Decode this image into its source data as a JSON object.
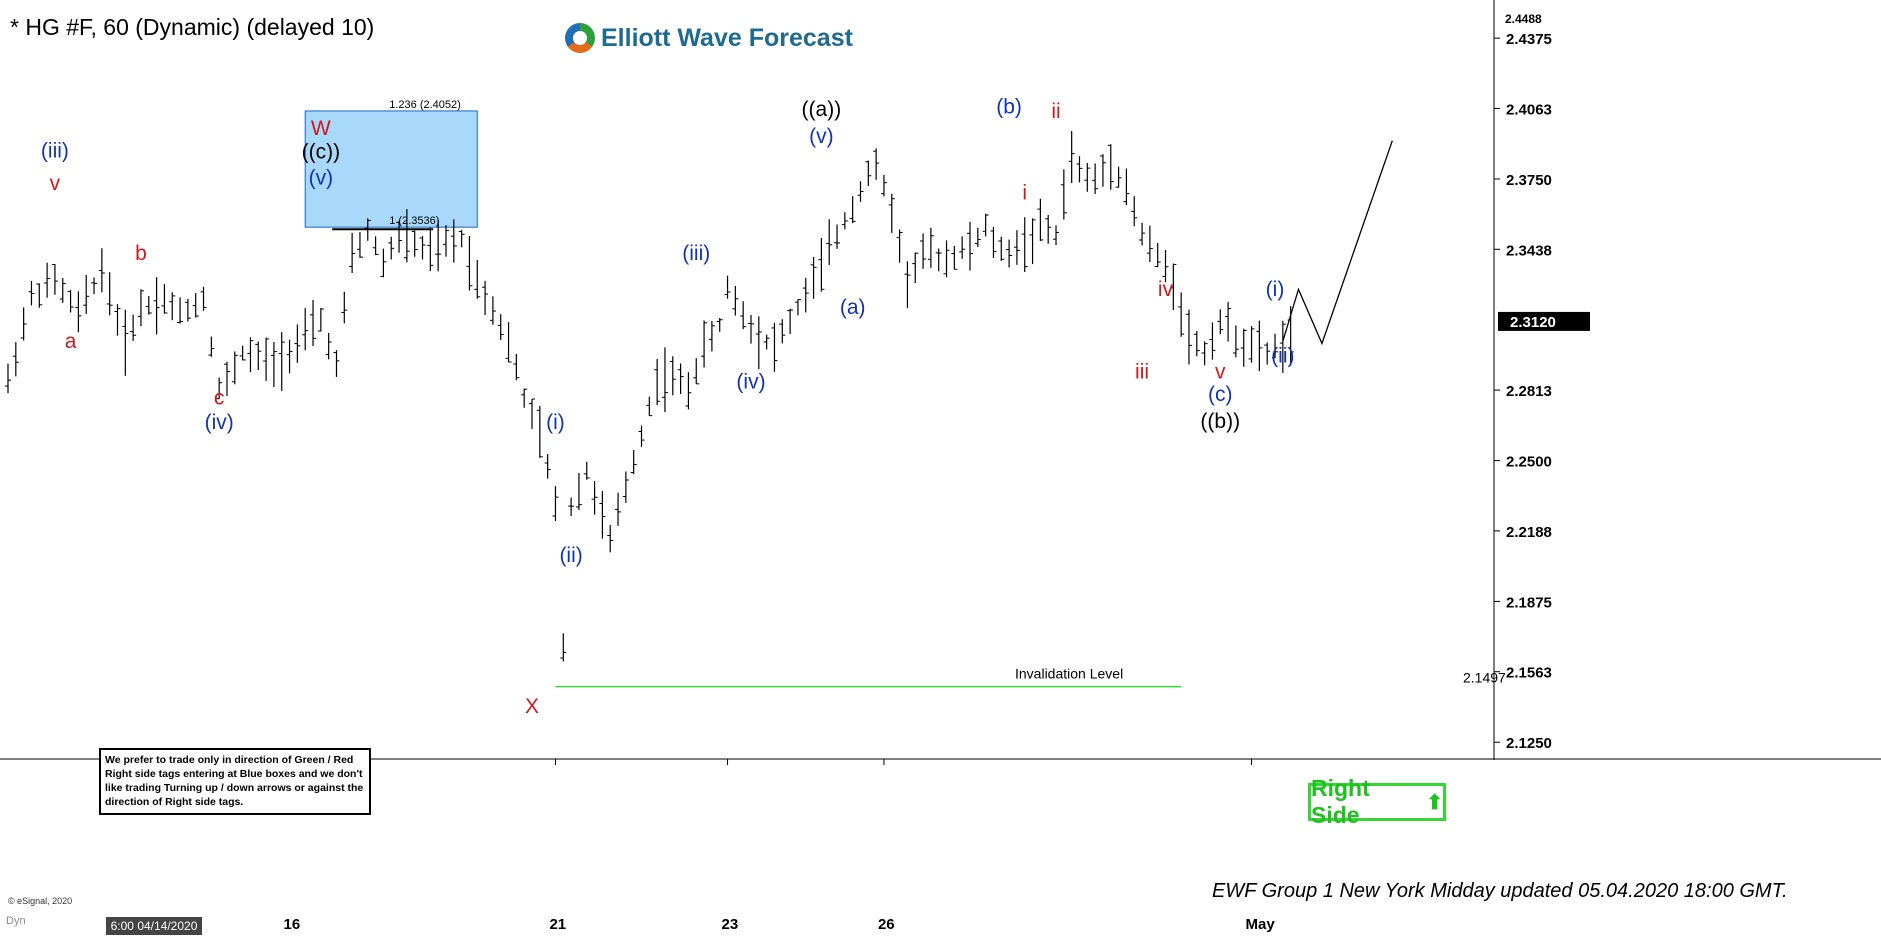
{
  "header": {
    "title": "* HG #F, 60 (Dynamic) (delayed 10)",
    "brand": "Elliott Wave Forecast"
  },
  "colors": {
    "red": "#d0191b",
    "blue": "#1233b5",
    "black": "#000000",
    "green": "#35d635",
    "box": "#a8d8fa"
  },
  "note": "We prefer to trade only in direction of Green / Red Right side tags entering at Blue boxes and we don't like trading Turning up / down arrows or against the direction of Right side tags.",
  "right_side": {
    "label": "Right Side",
    "arrow": "⬆"
  },
  "footer": {
    "update": "EWF Group 1 New York Midday updated 05.04.2020 18:00 GMT.",
    "source": "© eSignal, 2020",
    "dyn": "Dyn",
    "cursor_date": "6:00 04/14/2020"
  },
  "chart_data": {
    "type": "ohlc",
    "y_axis": {
      "ticks": [
        "2.4375",
        "2.4063",
        "2.3750",
        "2.3438",
        "2.2813",
        "2.2500",
        "2.2188",
        "2.1875",
        "2.1563",
        "2.1250"
      ],
      "top_label": "2.4488",
      "last_price": "2.3120",
      "ylim": [
        2.118,
        2.45
      ]
    },
    "x_axis": {
      "ticks": [
        {
          "label": "16",
          "bar": 36
        },
        {
          "label": "21",
          "bar": 70
        },
        {
          "label": "23",
          "bar": 92
        },
        {
          "label": "26",
          "bar": 112
        },
        {
          "label": "May",
          "bar": 159
        }
      ],
      "bars_visible": 190
    },
    "bars": [
      [
        0,
        2.285
      ],
      [
        3,
        2.323
      ],
      [
        6,
        2.33
      ],
      [
        9,
        2.315
      ],
      [
        12,
        2.335
      ],
      [
        15,
        2.302
      ],
      [
        17,
        2.318
      ],
      [
        20,
        2.322
      ],
      [
        22,
        2.315
      ],
      [
        25,
        2.322
      ],
      [
        27,
        2.282
      ],
      [
        28,
        2.285
      ],
      [
        30,
        2.298
      ],
      [
        34,
        2.293
      ],
      [
        37,
        2.302
      ],
      [
        40,
        2.312
      ],
      [
        42,
        2.292
      ],
      [
        44,
        2.34
      ],
      [
        46,
        2.352
      ],
      [
        48,
        2.338
      ],
      [
        50,
        2.35
      ],
      [
        52,
        2.346
      ],
      [
        54,
        2.342
      ],
      [
        56,
        2.346
      ],
      [
        58,
        2.349
      ],
      [
        60,
        2.33
      ],
      [
        62,
        2.318
      ],
      [
        64,
        2.302
      ],
      [
        66,
        2.278
      ],
      [
        68,
        2.262
      ],
      [
        70,
        2.23
      ],
      [
        71,
        2.168
      ],
      [
        72,
        2.23
      ],
      [
        74,
        2.245
      ],
      [
        75,
        2.235
      ],
      [
        77,
        2.214
      ],
      [
        79,
        2.238
      ],
      [
        81,
        2.262
      ],
      [
        83,
        2.286
      ],
      [
        85,
        2.287
      ],
      [
        87,
        2.282
      ],
      [
        89,
        2.3
      ],
      [
        91,
        2.31
      ],
      [
        92,
        2.327
      ],
      [
        94,
        2.315
      ],
      [
        96,
        2.305
      ],
      [
        98,
        2.301
      ],
      [
        100,
        2.312
      ],
      [
        103,
        2.33
      ],
      [
        106,
        2.35
      ],
      [
        108,
        2.363
      ],
      [
        110,
        2.378
      ],
      [
        111,
        2.38
      ],
      [
        113,
        2.362
      ],
      [
        114,
        2.345
      ],
      [
        115,
        2.33
      ],
      [
        117,
        2.342
      ],
      [
        120,
        2.34
      ],
      [
        123,
        2.345
      ],
      [
        125,
        2.353
      ],
      [
        127,
        2.342
      ],
      [
        130,
        2.346
      ],
      [
        132,
        2.354
      ],
      [
        134,
        2.35
      ],
      [
        136,
        2.386
      ],
      [
        137,
        2.378
      ],
      [
        139,
        2.374
      ],
      [
        141,
        2.384
      ],
      [
        143,
        2.371
      ],
      [
        145,
        2.35
      ],
      [
        147,
        2.34
      ],
      [
        149,
        2.33
      ],
      [
        151,
        2.305
      ],
      [
        153,
        2.298
      ],
      [
        155,
        2.312
      ],
      [
        157,
        2.305
      ],
      [
        159,
        2.3
      ],
      [
        161,
        2.298
      ],
      [
        163,
        2.302
      ],
      [
        165,
        2.308
      ]
    ],
    "fib_box": {
      "price_top": 2.4052,
      "price_bottom": 2.3536,
      "bar_start": 38,
      "bar_end": 60,
      "label_top": "1.236 (2.4052)",
      "label_bottom": "1 (2.3536)"
    },
    "invalidation": {
      "price": 2.1497,
      "bar_start": 70,
      "bar_end": 150,
      "label": "Invalidation Level",
      "value": "2.1497"
    },
    "projection": {
      "points": [
        [
          163,
          2.303
        ],
        [
          165,
          2.326
        ],
        [
          168,
          2.302
        ],
        [
          177,
          2.392
        ]
      ]
    },
    "wave_labels": [
      {
        "text": "(iii)",
        "bar": 6,
        "price": 2.3845,
        "color": "blue"
      },
      {
        "text": "v",
        "bar": 6,
        "price": 2.37,
        "color": "red"
      },
      {
        "text": "a",
        "bar": 8,
        "price": 2.3,
        "color": "red"
      },
      {
        "text": "b",
        "bar": 17,
        "price": 2.339,
        "color": "red"
      },
      {
        "text": "c",
        "bar": 27,
        "price": 2.275,
        "color": "red"
      },
      {
        "text": "(iv)",
        "bar": 27,
        "price": 2.264,
        "color": "blue"
      },
      {
        "text": "W",
        "bar": 40,
        "price": 2.3945,
        "color": "red"
      },
      {
        "text": "((c))",
        "bar": 40,
        "price": 2.384,
        "color": "black"
      },
      {
        "text": "(v)",
        "bar": 40,
        "price": 2.3725,
        "color": "blue"
      },
      {
        "text": "X",
        "bar": 67,
        "price": 2.138,
        "color": "red"
      },
      {
        "text": "(i)",
        "bar": 70,
        "price": 2.264,
        "color": "blue"
      },
      {
        "text": "(ii)",
        "bar": 72,
        "price": 2.205,
        "color": "blue"
      },
      {
        "text": "(iii)",
        "bar": 88,
        "price": 2.339,
        "color": "blue"
      },
      {
        "text": "(iv)",
        "bar": 95,
        "price": 2.282,
        "color": "blue"
      },
      {
        "text": "((a))",
        "bar": 104,
        "price": 2.403,
        "color": "black"
      },
      {
        "text": "(v)",
        "bar": 104,
        "price": 2.391,
        "color": "blue"
      },
      {
        "text": "(a)",
        "bar": 108,
        "price": 2.315,
        "color": "blue"
      },
      {
        "text": "(b)",
        "bar": 128,
        "price": 2.404,
        "color": "blue"
      },
      {
        "text": "ii",
        "bar": 134,
        "price": 2.402,
        "color": "red"
      },
      {
        "text": "i",
        "bar": 130,
        "price": 2.366,
        "color": "red"
      },
      {
        "text": "iv",
        "bar": 148,
        "price": 2.323,
        "color": "red"
      },
      {
        "text": "iii",
        "bar": 145,
        "price": 2.2865,
        "color": "red"
      },
      {
        "text": "v",
        "bar": 155,
        "price": 2.2865,
        "color": "red"
      },
      {
        "text": "(c)",
        "bar": 155,
        "price": 2.2765,
        "color": "blue"
      },
      {
        "text": "((b))",
        "bar": 155,
        "price": 2.2645,
        "color": "black"
      },
      {
        "text": "(i)",
        "bar": 162,
        "price": 2.323,
        "color": "blue"
      },
      {
        "text": "(ii)",
        "bar": 163,
        "price": 2.2935,
        "color": "blue"
      }
    ]
  }
}
